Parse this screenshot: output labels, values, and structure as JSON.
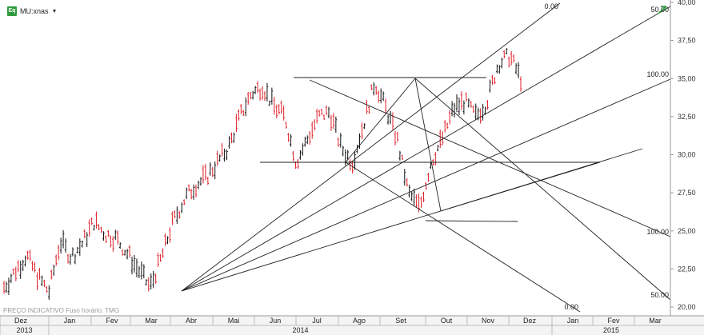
{
  "header": {
    "logo_text": "Eq",
    "symbol": "MU:xnas",
    "dropdown_icon": "caret-down-icon"
  },
  "footer": {
    "note": "PREÇO INDICATIVO   Fuso horário: TMG"
  },
  "colors": {
    "up": "#111111",
    "down": "#e0202b",
    "lines": "#222222",
    "grid": "#d0d0d0",
    "logo": "#2e9b3e"
  },
  "chart_data": {
    "type": "ohlc",
    "y_ticks": [
      "40,00",
      "37,50",
      "35,00",
      "32,50",
      "30,00",
      "27,50",
      "25,00",
      "22,50",
      "20,00"
    ],
    "ylim": [
      20,
      40
    ],
    "months": [
      "Dez",
      "Jan",
      "Fev",
      "Mar",
      "Abr",
      "Mai",
      "Jun",
      "Jul",
      "Ago",
      "Set",
      "Out",
      "Nov",
      "Dez",
      "Jan",
      "Fev",
      "Mar"
    ],
    "years": [
      "2013",
      "2014",
      "2015"
    ],
    "price_path": [
      [
        0,
        21.3
      ],
      [
        2,
        23.4
      ],
      [
        3,
        22.0
      ],
      [
        4,
        21.0
      ],
      [
        5,
        24.3
      ],
      [
        6,
        23.3
      ],
      [
        7,
        24.2
      ],
      [
        8,
        25.6
      ],
      [
        9,
        24.8
      ],
      [
        10,
        24.5
      ],
      [
        11,
        23.5
      ],
      [
        12,
        22.4
      ],
      [
        13,
        21.3
      ],
      [
        14,
        23.2
      ],
      [
        15,
        25.5
      ],
      [
        16,
        27.0
      ],
      [
        17,
        28.0
      ],
      [
        18,
        28.5
      ],
      [
        19,
        29.5
      ],
      [
        20,
        30.5
      ],
      [
        21,
        32.5
      ],
      [
        22,
        34.0
      ],
      [
        23,
        34.5
      ],
      [
        24,
        33.2
      ],
      [
        25,
        32.5
      ],
      [
        26,
        29.5
      ],
      [
        27,
        31.0
      ],
      [
        28,
        32.5
      ],
      [
        29,
        32.8
      ],
      [
        30,
        30.5
      ],
      [
        31,
        29.5
      ],
      [
        32,
        32.0
      ],
      [
        33,
        34.8
      ],
      [
        34,
        33.0
      ],
      [
        35,
        31.0
      ],
      [
        36,
        27.5
      ],
      [
        37,
        26.5
      ],
      [
        38,
        29.5
      ],
      [
        39,
        31.0
      ],
      [
        40,
        33.0
      ],
      [
        41,
        33.5
      ],
      [
        42,
        32.5
      ],
      [
        43,
        33.5
      ],
      [
        44,
        36.0
      ],
      [
        45,
        36.5
      ],
      [
        46,
        35.0
      ]
    ],
    "overlay_lines": [
      {
        "p1": [
          227,
          364
        ],
        "p2": [
          700,
          4
        ],
        "label": "0.00"
      },
      {
        "p1": [
          227,
          364
        ],
        "p2": [
          838,
          8
        ],
        "label": "50.00"
      },
      {
        "p1": [
          227,
          364
        ],
        "p2": [
          838,
          99
        ],
        "label": "100.00"
      },
      {
        "p1": [
          227,
          364
        ],
        "p2": [
          803,
          186
        ],
        "label": ""
      },
      {
        "p1": [
          387,
          100
        ],
        "p2": [
          838,
          296
        ],
        "label": "100.00"
      },
      {
        "p1": [
          519,
          98
        ],
        "p2": [
          838,
          375
        ],
        "label": "50.00"
      },
      {
        "p1": [
          432,
          203
        ],
        "p2": [
          725,
          390
        ],
        "label": "0.00"
      },
      {
        "p1": [
          432,
          203
        ],
        "p2": [
          519,
          98
        ],
        "label": ""
      },
      {
        "p1": [
          519,
          98
        ],
        "p2": [
          551,
          264
        ],
        "label": ""
      },
      {
        "p1": [
          551,
          264
        ],
        "p2": [
          750,
          203
        ],
        "label": ""
      },
      {
        "p1": [
          367,
          97
        ],
        "p2": [
          608,
          97
        ],
        "label": ""
      },
      {
        "p1": [
          325,
          203
        ],
        "p2": [
          750,
          203
        ],
        "label": ""
      },
      {
        "p1": [
          532,
          276
        ],
        "p2": [
          647,
          277
        ],
        "label": ""
      }
    ]
  }
}
